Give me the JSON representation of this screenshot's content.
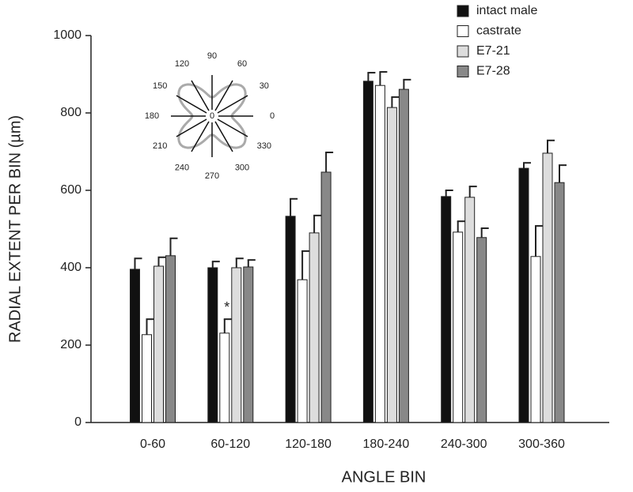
{
  "chart_data": {
    "type": "bar",
    "x_label": "ANGLE BIN",
    "y_label": "RADIAL EXTENT PER BIN (µm)",
    "categories": [
      "0-60",
      "60-120",
      "120-180",
      "180-240",
      "240-300",
      "300-360"
    ],
    "series": [
      {
        "name": "intact male",
        "color": "#111111",
        "values": [
          396,
          400,
          533,
          882,
          584,
          657
        ],
        "errors": [
          28,
          16,
          45,
          22,
          16,
          14
        ]
      },
      {
        "name": "castrate",
        "color": "#ffffff",
        "values": [
          227,
          231,
          369,
          871,
          492,
          429
        ],
        "errors": [
          40,
          36,
          74,
          35,
          28,
          79
        ]
      },
      {
        "name": "E7-21",
        "color": "#dddddd",
        "values": [
          404,
          400,
          490,
          814,
          582,
          696
        ],
        "errors": [
          23,
          24,
          45,
          27,
          28,
          33
        ]
      },
      {
        "name": "E7-28",
        "color": "#888888",
        "values": [
          431,
          402,
          647,
          861,
          478,
          620
        ],
        "errors": [
          45,
          18,
          51,
          25,
          24,
          45
        ]
      }
    ],
    "ylim": [
      0,
      1000
    ],
    "yticks": [
      0,
      200,
      400,
      600,
      800,
      1000
    ],
    "legend": "upper right",
    "annotations": [
      "*"
    ],
    "inset": {
      "angles": [
        0,
        30,
        60,
        90,
        120,
        150,
        180,
        210,
        240,
        270,
        300,
        330
      ],
      "center": "0"
    }
  }
}
